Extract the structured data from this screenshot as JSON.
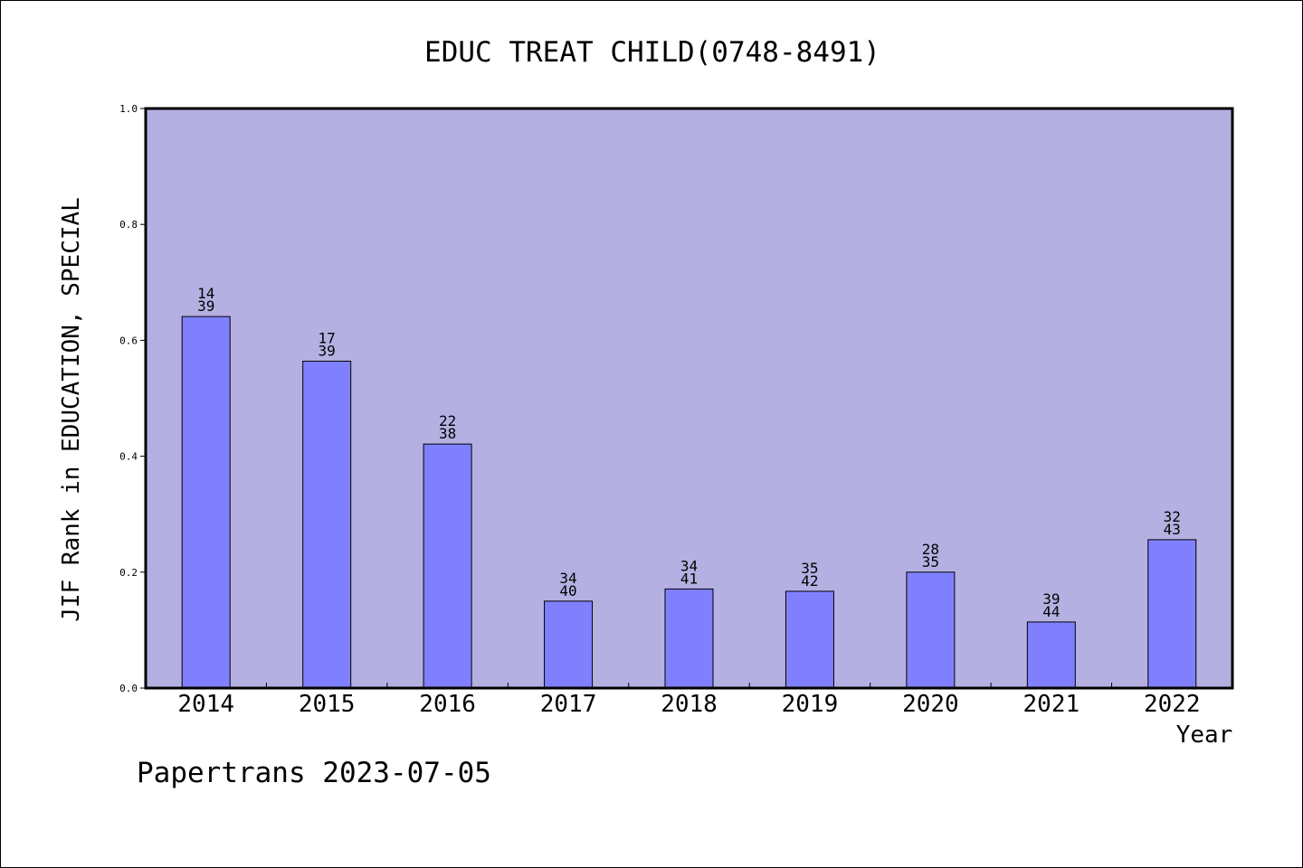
{
  "chart_data": {
    "type": "bar",
    "title": "EDUC TREAT CHILD(0748-8491)",
    "xlabel": "Year",
    "ylabel": "JIF Rank in EDUCATION, SPECIAL",
    "ylim": [
      0,
      1.0
    ],
    "yticks": [
      "0.0",
      "0.2",
      "0.4",
      "0.6",
      "0.8",
      "1.0"
    ],
    "categories": [
      "2014",
      "2015",
      "2016",
      "2017",
      "2018",
      "2019",
      "2020",
      "2021",
      "2022"
    ],
    "values": [
      0.641,
      0.564,
      0.421,
      0.15,
      0.171,
      0.167,
      0.2,
      0.114,
      0.256
    ],
    "labels": [
      [
        "14",
        "39"
      ],
      [
        "17",
        "39"
      ],
      [
        "22",
        "38"
      ],
      [
        "34",
        "40"
      ],
      [
        "34",
        "41"
      ],
      [
        "35",
        "42"
      ],
      [
        "28",
        "35"
      ],
      [
        "39",
        "44"
      ],
      [
        "32",
        "43"
      ]
    ],
    "grid": false,
    "colors": {
      "plot_background": "#b5b0e2",
      "bar_fill": "#8080ff",
      "bar_stroke": "#000000"
    }
  },
  "footer": "Papertrans 2023-07-05"
}
